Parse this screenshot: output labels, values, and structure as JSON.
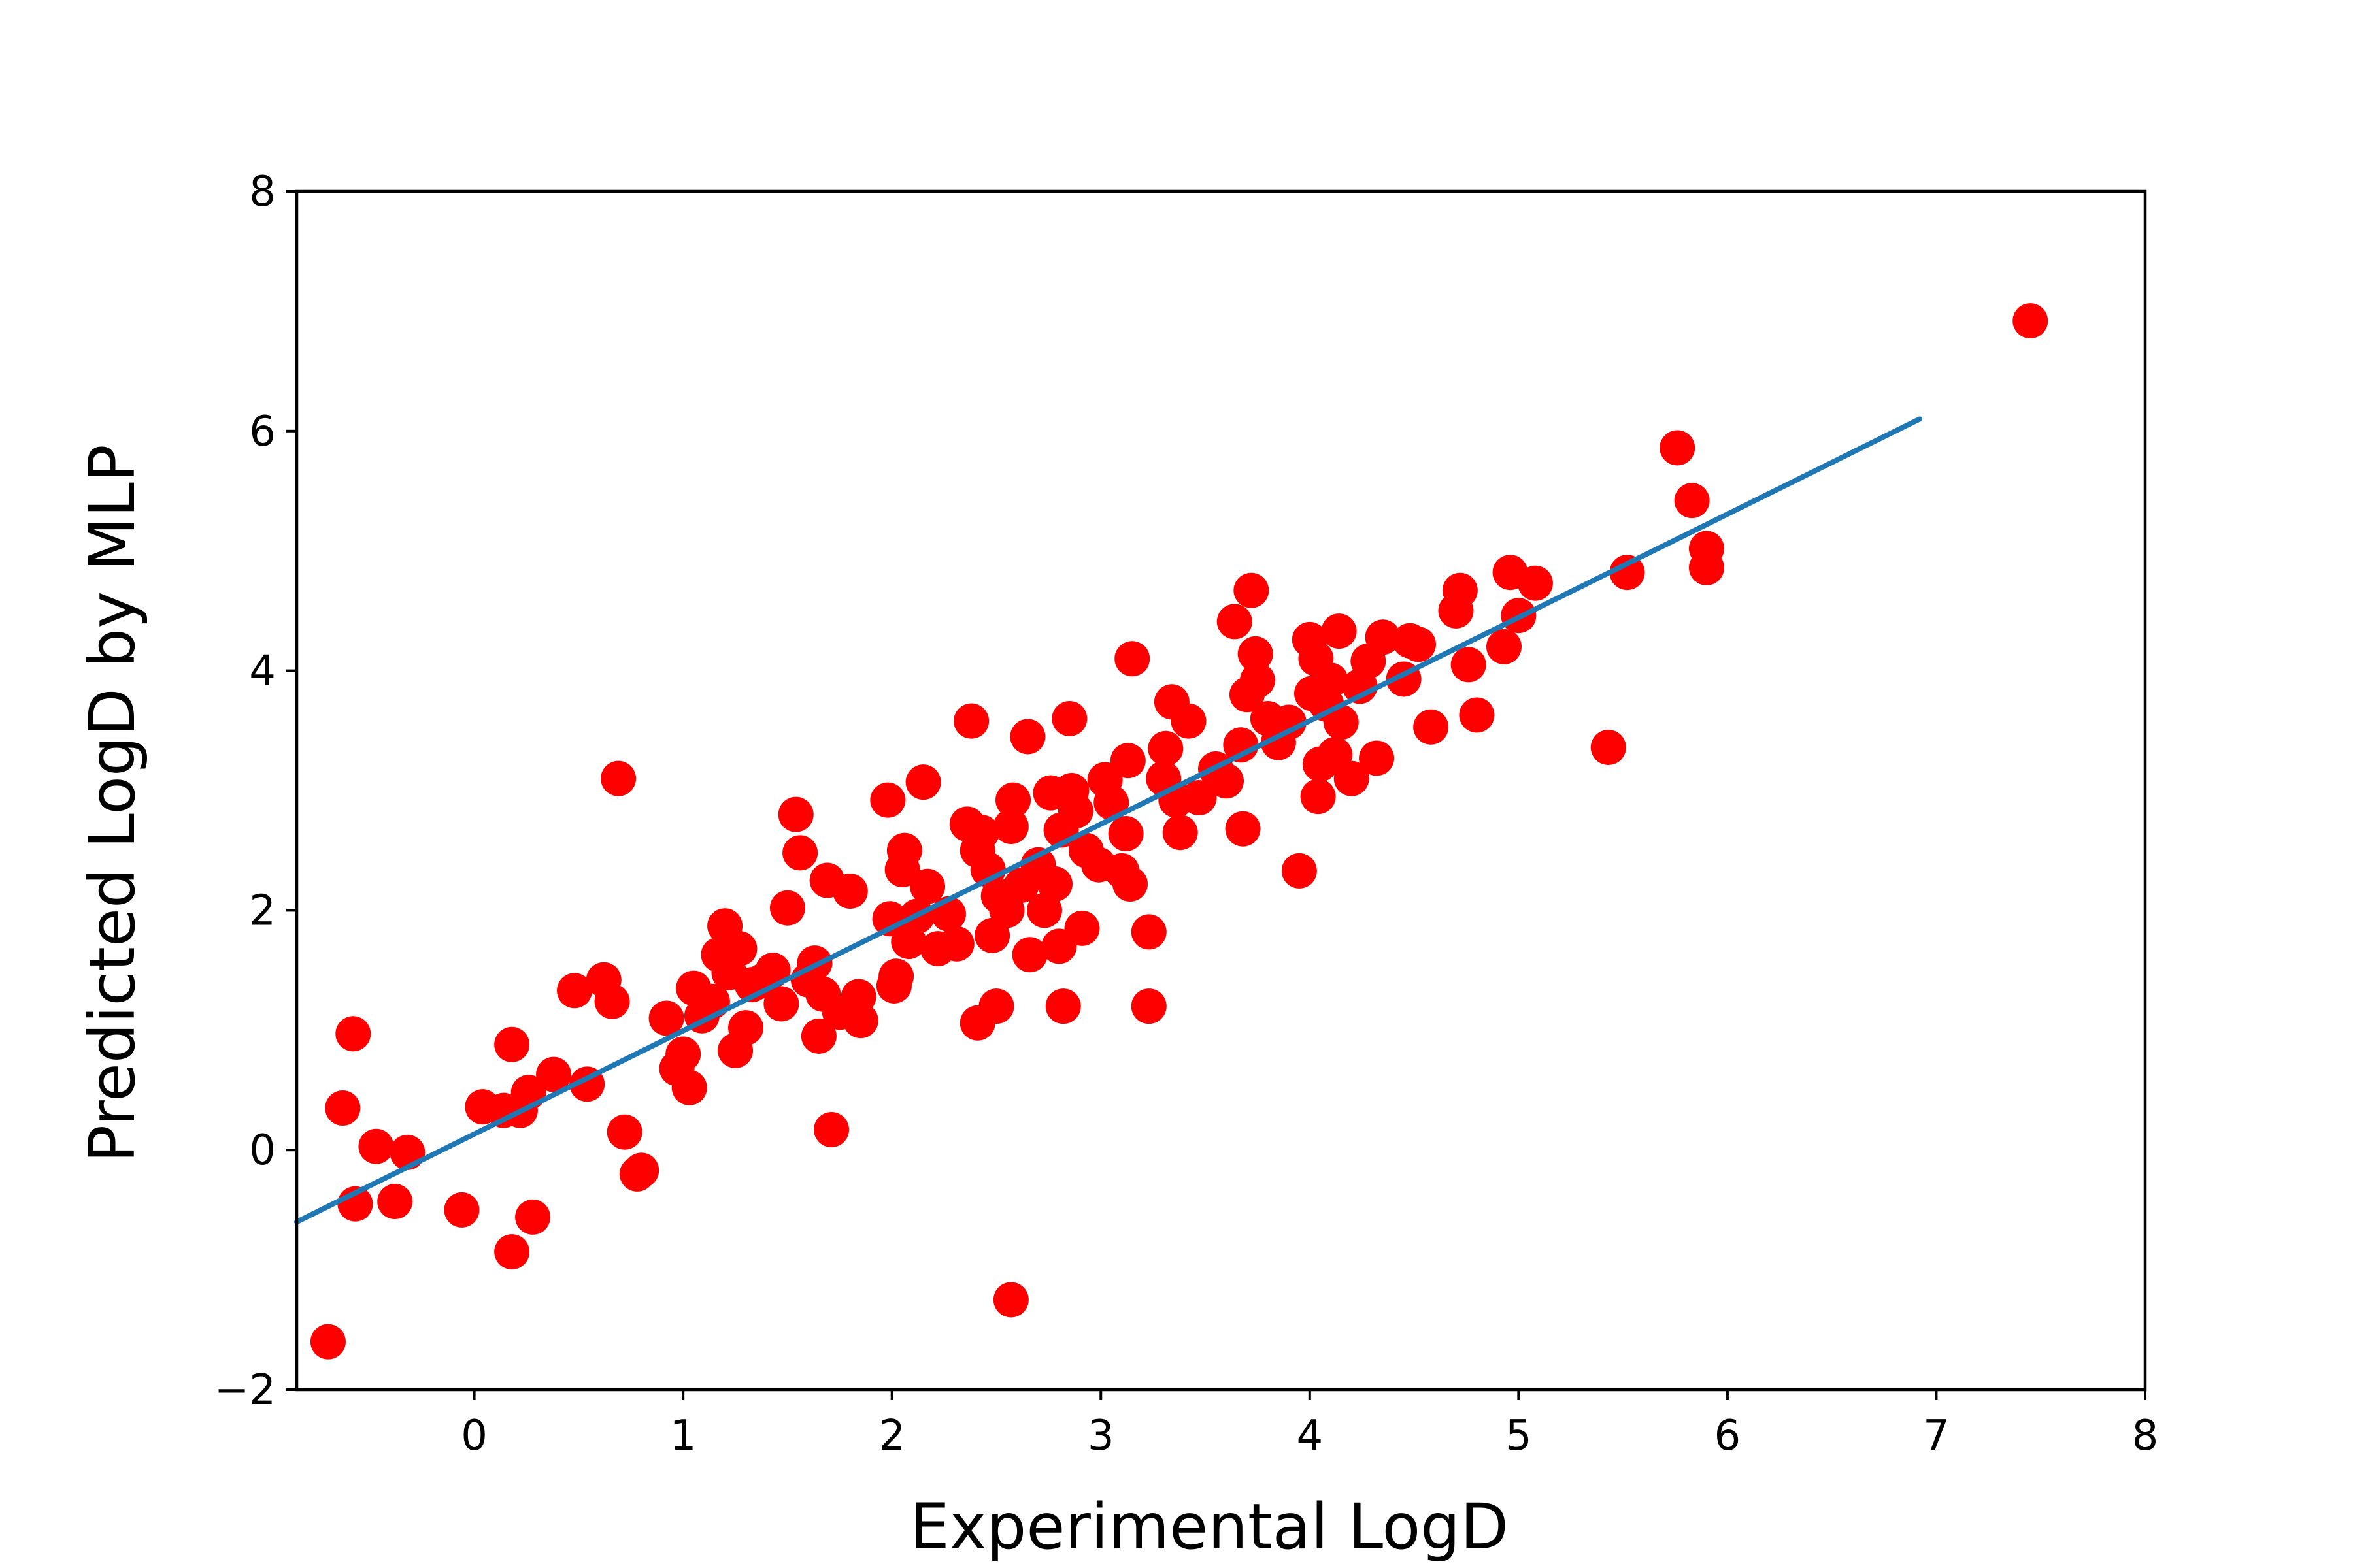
{
  "chart_data": {
    "type": "scatter",
    "title": "",
    "xlabel": "Experimental LogD",
    "ylabel": "Predicted LogD by MLP",
    "xlim": [
      -0.85,
      8.0
    ],
    "ylim": [
      -2,
      8
    ],
    "x_ticks": [
      {
        "value": 0,
        "label": "0"
      },
      {
        "value": 1,
        "label": "1"
      },
      {
        "value": 2,
        "label": "2"
      },
      {
        "value": 3,
        "label": "3"
      },
      {
        "value": 4,
        "label": "4"
      },
      {
        "value": 5,
        "label": "5"
      },
      {
        "value": 6,
        "label": "6"
      },
      {
        "value": 7,
        "label": "7"
      },
      {
        "value": 8,
        "label": "8"
      }
    ],
    "y_ticks": [
      {
        "value": -2,
        "label": "−2"
      },
      {
        "value": 0,
        "label": "0"
      },
      {
        "value": 2,
        "label": "2"
      },
      {
        "value": 4,
        "label": "4"
      },
      {
        "value": 6,
        "label": "6"
      },
      {
        "value": 8,
        "label": "8"
      }
    ],
    "grid": false,
    "colors": {
      "points": "#ff0000",
      "fit_line": "#1f77b4"
    },
    "fit_line": {
      "x": [
        -0.85,
        6.92
      ],
      "y": [
        -0.6,
        6.1
      ]
    },
    "points": [
      [
        -0.7,
        -1.6
      ],
      [
        -0.63,
        0.35
      ],
      [
        -0.58,
        0.97
      ],
      [
        -0.57,
        -0.45
      ],
      [
        -0.47,
        0.03
      ],
      [
        -0.38,
        -0.43
      ],
      [
        -0.32,
        -0.02
      ],
      [
        -0.06,
        -0.5
      ],
      [
        0.04,
        0.36
      ],
      [
        0.14,
        0.33
      ],
      [
        0.18,
        0.88
      ],
      [
        0.18,
        -0.85
      ],
      [
        0.22,
        0.33
      ],
      [
        0.26,
        0.48
      ],
      [
        0.28,
        -0.56
      ],
      [
        0.38,
        0.63
      ],
      [
        0.48,
        1.33
      ],
      [
        0.54,
        0.55
      ],
      [
        0.62,
        1.42
      ],
      [
        0.66,
        1.24
      ],
      [
        0.69,
        3.1
      ],
      [
        0.72,
        0.15
      ],
      [
        0.78,
        -0.2
      ],
      [
        0.8,
        -0.17
      ],
      [
        0.92,
        1.1
      ],
      [
        0.97,
        0.68
      ],
      [
        1.0,
        0.8
      ],
      [
        1.03,
        0.52
      ],
      [
        1.05,
        1.35
      ],
      [
        1.09,
        1.12
      ],
      [
        1.14,
        1.24
      ],
      [
        1.17,
        1.63
      ],
      [
        1.2,
        1.87
      ],
      [
        1.22,
        1.48
      ],
      [
        1.25,
        0.83
      ],
      [
        1.27,
        1.68
      ],
      [
        1.3,
        1.02
      ],
      [
        1.33,
        1.38
      ],
      [
        1.38,
        1.41
      ],
      [
        1.43,
        1.5
      ],
      [
        1.47,
        1.22
      ],
      [
        1.5,
        2.02
      ],
      [
        1.54,
        2.8
      ],
      [
        1.56,
        2.48
      ],
      [
        1.6,
        1.42
      ],
      [
        1.63,
        1.56
      ],
      [
        1.65,
        0.95
      ],
      [
        1.67,
        1.3
      ],
      [
        1.69,
        2.25
      ],
      [
        1.71,
        0.17
      ],
      [
        1.75,
        1.15
      ],
      [
        1.8,
        2.16
      ],
      [
        1.84,
        1.28
      ],
      [
        1.85,
        1.08
      ],
      [
        1.98,
        2.92
      ],
      [
        1.99,
        1.93
      ],
      [
        2.01,
        1.37
      ],
      [
        2.02,
        1.45
      ],
      [
        2.05,
        2.34
      ],
      [
        2.06,
        2.5
      ],
      [
        2.08,
        1.74
      ],
      [
        2.12,
        1.95
      ],
      [
        2.15,
        3.07
      ],
      [
        2.17,
        2.2
      ],
      [
        2.22,
        1.68
      ],
      [
        2.27,
        1.97
      ],
      [
        2.31,
        1.72
      ],
      [
        2.36,
        2.72
      ],
      [
        2.38,
        3.58
      ],
      [
        2.41,
        2.5
      ],
      [
        2.41,
        1.06
      ],
      [
        2.43,
        2.65
      ],
      [
        2.46,
        2.34
      ],
      [
        2.48,
        1.79
      ],
      [
        2.5,
        1.2
      ],
      [
        2.51,
        2.12
      ],
      [
        2.55,
        2.0
      ],
      [
        2.57,
        2.7
      ],
      [
        2.58,
        2.92
      ],
      [
        2.57,
        -1.25
      ],
      [
        2.62,
        2.21
      ],
      [
        2.65,
        3.45
      ],
      [
        2.66,
        1.63
      ],
      [
        2.7,
        2.38
      ],
      [
        2.73,
        2.0
      ],
      [
        2.76,
        2.98
      ],
      [
        2.78,
        2.22
      ],
      [
        2.8,
        1.7
      ],
      [
        2.81,
        2.67
      ],
      [
        2.82,
        1.2
      ],
      [
        2.85,
        3.6
      ],
      [
        2.86,
        3.0
      ],
      [
        2.88,
        2.83
      ],
      [
        2.91,
        1.85
      ],
      [
        2.93,
        2.5
      ],
      [
        2.99,
        2.38
      ],
      [
        3.02,
        3.09
      ],
      [
        3.05,
        2.9
      ],
      [
        3.1,
        2.33
      ],
      [
        3.12,
        2.64
      ],
      [
        3.13,
        3.25
      ],
      [
        3.14,
        2.22
      ],
      [
        3.15,
        4.1
      ],
      [
        3.23,
        1.82
      ],
      [
        3.23,
        1.2
      ],
      [
        3.3,
        3.1
      ],
      [
        3.31,
        3.35
      ],
      [
        3.34,
        3.74
      ],
      [
        3.36,
        2.92
      ],
      [
        3.38,
        2.65
      ],
      [
        3.42,
        3.58
      ],
      [
        3.47,
        2.94
      ],
      [
        3.55,
        3.18
      ],
      [
        3.6,
        3.08
      ],
      [
        3.64,
        4.41
      ],
      [
        3.67,
        3.38
      ],
      [
        3.68,
        2.68
      ],
      [
        3.7,
        3.8
      ],
      [
        3.72,
        4.67
      ],
      [
        3.74,
        4.14
      ],
      [
        3.75,
        3.92
      ],
      [
        3.8,
        3.6
      ],
      [
        3.85,
        3.4
      ],
      [
        3.9,
        3.57
      ],
      [
        3.95,
        2.33
      ],
      [
        4.0,
        4.26
      ],
      [
        4.01,
        3.81
      ],
      [
        4.03,
        4.1
      ],
      [
        4.04,
        2.95
      ],
      [
        4.05,
        3.22
      ],
      [
        4.08,
        3.72
      ],
      [
        4.1,
        3.92
      ],
      [
        4.12,
        3.3
      ],
      [
        4.14,
        4.33
      ],
      [
        4.15,
        3.57
      ],
      [
        4.2,
        3.1
      ],
      [
        4.24,
        3.87
      ],
      [
        4.28,
        4.08
      ],
      [
        4.32,
        3.27
      ],
      [
        4.35,
        4.28
      ],
      [
        4.45,
        3.93
      ],
      [
        4.48,
        4.25
      ],
      [
        4.52,
        4.22
      ],
      [
        4.58,
        3.53
      ],
      [
        4.7,
        4.5
      ],
      [
        4.72,
        4.67
      ],
      [
        4.76,
        4.05
      ],
      [
        4.8,
        3.63
      ],
      [
        4.93,
        4.2
      ],
      [
        4.96,
        4.82
      ],
      [
        5.0,
        4.46
      ],
      [
        5.08,
        4.73
      ],
      [
        5.43,
        3.36
      ],
      [
        5.52,
        4.82
      ],
      [
        5.76,
        5.86
      ],
      [
        5.83,
        5.42
      ],
      [
        5.9,
        5.02
      ],
      [
        5.9,
        4.86
      ],
      [
        7.45,
        6.92
      ]
    ]
  }
}
